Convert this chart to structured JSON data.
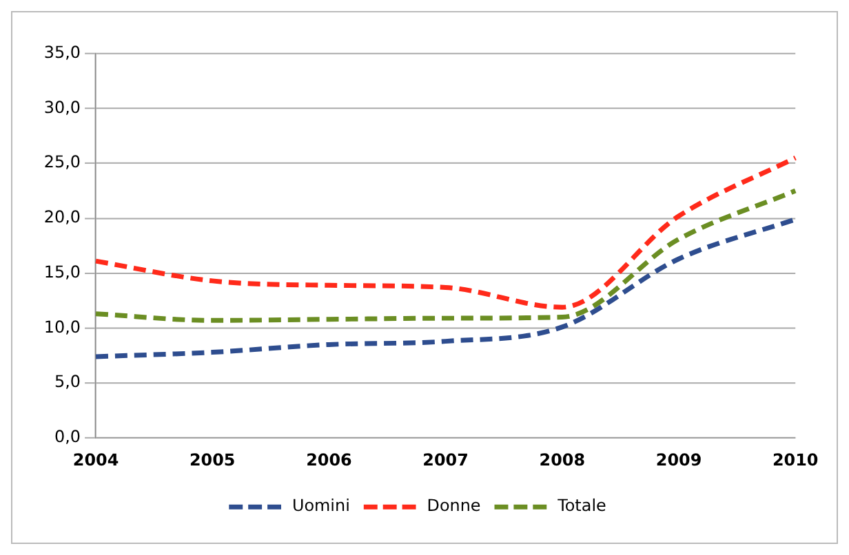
{
  "chart_data": {
    "type": "line",
    "categories": [
      "2004",
      "2005",
      "2006",
      "2007",
      "2008",
      "2009",
      "2010"
    ],
    "series": [
      {
        "name": "Uomini",
        "color": "#2e4d8f",
        "values": [
          7.4,
          7.8,
          8.5,
          8.8,
          10.1,
          16.3,
          19.9
        ]
      },
      {
        "name": "Donne",
        "color": "#ff2a1a",
        "values": [
          16.1,
          14.3,
          13.9,
          13.7,
          11.9,
          20.2,
          25.5
        ]
      },
      {
        "name": "Totale",
        "color": "#6b8e23",
        "values": [
          11.3,
          10.7,
          10.8,
          10.9,
          11.0,
          18.1,
          22.5
        ]
      }
    ],
    "ylim": [
      0,
      35
    ],
    "yticks": [
      {
        "value": 0,
        "label": "0,0"
      },
      {
        "value": 5,
        "label": "5,0"
      },
      {
        "value": 10,
        "label": "10,0"
      },
      {
        "value": 15,
        "label": "15,0"
      },
      {
        "value": 20,
        "label": "20,0"
      },
      {
        "value": 25,
        "label": "25,0"
      },
      {
        "value": 30,
        "label": "30,0"
      },
      {
        "value": 35,
        "label": "35,0"
      }
    ],
    "grid": "y",
    "legend": "bottom",
    "marker": "none",
    "line_style": "dashed"
  }
}
